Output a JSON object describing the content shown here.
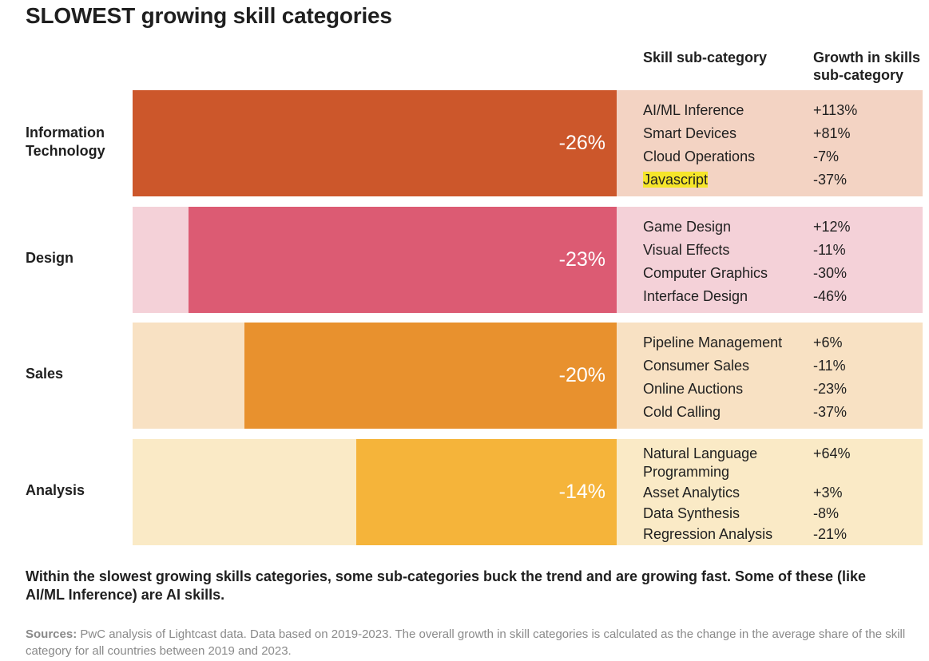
{
  "title": "SLOWEST growing skill categories",
  "headers": {
    "subcategory": "Skill sub-category",
    "growth": "Growth in skills sub-category"
  },
  "colors": {
    "Information Technology": {
      "band": "#f3d3c3",
      "bar": "#cc572b"
    },
    "Design": {
      "band": "#f4d1d8",
      "bar": "#dc5b73"
    },
    "Sales": {
      "band": "#f8e1c3",
      "bar": "#e8912e"
    },
    "Analysis": {
      "band": "#faeac6",
      "bar": "#f5b43a"
    }
  },
  "chart_data": {
    "type": "bar",
    "orientation": "horizontal",
    "categories": [
      "Information Technology",
      "Design",
      "Sales",
      "Analysis"
    ],
    "values": [
      -26,
      -23,
      -20,
      -14
    ],
    "value_labels": [
      "-26%",
      "-23%",
      "-20%",
      "-14%"
    ],
    "xlim": [
      -26,
      0
    ],
    "grid": false,
    "subcategories": [
      {
        "category": "Information Technology",
        "items": [
          {
            "name": "AI/ML Inference",
            "growth": "+113%"
          },
          {
            "name": "Smart Devices",
            "growth": "+81%"
          },
          {
            "name": "Cloud Operations",
            "growth": "-7%"
          },
          {
            "name": "Javascript",
            "growth": "-37%",
            "highlight": true
          }
        ]
      },
      {
        "category": "Design",
        "items": [
          {
            "name": "Game Design",
            "growth": "+12%"
          },
          {
            "name": "Visual Effects",
            "growth": "-11%"
          },
          {
            "name": "Computer Graphics",
            "growth": "-30%"
          },
          {
            "name": "Interface Design",
            "growth": "-46%"
          }
        ]
      },
      {
        "category": "Sales",
        "items": [
          {
            "name": "Pipeline Management",
            "growth": "+6%"
          },
          {
            "name": "Consumer Sales",
            "growth": "-11%"
          },
          {
            "name": "Online Auctions",
            "growth": "-23%"
          },
          {
            "name": "Cold Calling",
            "growth": "-37%"
          }
        ]
      },
      {
        "category": "Analysis",
        "items": [
          {
            "name": "Natural Language Programming",
            "growth": "+64%"
          },
          {
            "name": "Asset Analytics",
            "growth": "+3%"
          },
          {
            "name": "Data Synthesis",
            "growth": "-8%"
          },
          {
            "name": "Regression Analysis",
            "growth": "-21%"
          }
        ]
      }
    ]
  },
  "note": "Within the slowest growing skills categories, some sub-categories buck the trend and are growing fast. Some of these (like AI/ML Inference) are AI skills.",
  "sources": {
    "label": "Sources:",
    "text": "PwC analysis of Lightcast data. Data based on 2019-2023. The overall growth in skill categories is calculated as the change in the average share of the skill category for all countries between 2019 and 2023."
  }
}
